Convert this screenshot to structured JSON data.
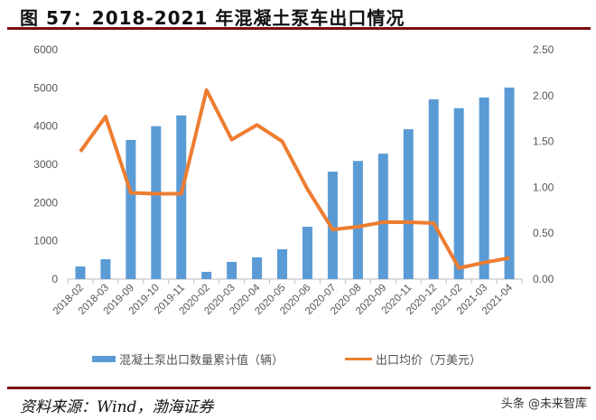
{
  "title": "图 57：2018-2021 年混凝土泵车出口情况",
  "source": "资料来源：Wind，渤海证券",
  "watermark": "头条 @未来智库",
  "chart_data": {
    "type": "bar+line",
    "title": "图 57：2018-2021 年混凝土泵车出口情况",
    "categories": [
      "2018-02",
      "2018-03",
      "2019-09",
      "2019-10",
      "2019-11",
      "2020-02",
      "2020-03",
      "2020-04",
      "2020-05",
      "2020-06",
      "2020-07",
      "2020-08",
      "2020-09",
      "2020-11",
      "2020-12",
      "2021-02",
      "2021-03",
      "2021-04"
    ],
    "series": [
      {
        "name": "混凝土泵出口数量累计值（辆）",
        "type": "bar",
        "axis": "left",
        "color": "#5b9bd5",
        "values": [
          330,
          520,
          3640,
          4000,
          4280,
          190,
          450,
          570,
          780,
          1370,
          2810,
          3090,
          3280,
          3920,
          4700,
          4470,
          4750,
          5010
        ]
      },
      {
        "name": "出口均价（万美元）",
        "type": "line",
        "axis": "right",
        "color": "#ed7d31",
        "values": [
          1.39,
          1.77,
          0.94,
          0.93,
          0.93,
          2.06,
          1.52,
          1.68,
          1.5,
          0.98,
          0.54,
          0.57,
          0.62,
          0.62,
          0.61,
          0.12,
          0.18,
          0.23
        ]
      }
    ],
    "y_left": {
      "range": [
        0,
        6000
      ],
      "ticks": [
        "0",
        "1000",
        "2000",
        "3000",
        "4000",
        "5000",
        "6000"
      ]
    },
    "y_right": {
      "range": [
        0,
        2.5
      ],
      "ticks": [
        "0.00",
        "0.50",
        "1.00",
        "1.50",
        "2.00",
        "2.50"
      ]
    },
    "grid": false,
    "legend_position": "bottom"
  }
}
